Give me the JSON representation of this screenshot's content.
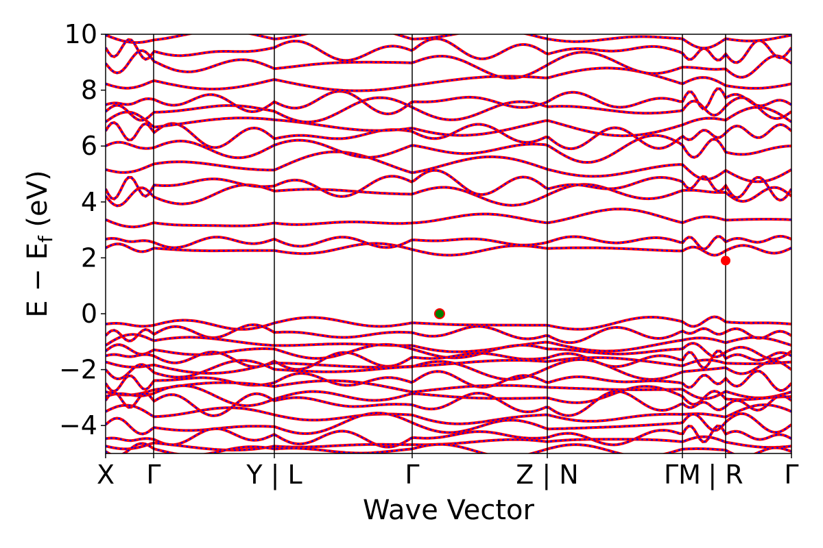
{
  "chart_data": {
    "type": "line",
    "title": "",
    "xlabel": "Wave Vector",
    "ylabel_parts": {
      "main": "E − E",
      "sub": "f",
      "unit": " (eV)"
    },
    "ylim": [
      -5,
      10
    ],
    "y_ticks": [
      {
        "value": 10,
        "label": "10"
      },
      {
        "value": 8,
        "label": "8"
      },
      {
        "value": 6,
        "label": "6"
      },
      {
        "value": 4,
        "label": "4"
      },
      {
        "value": 2,
        "label": "2"
      },
      {
        "value": 0,
        "label": "0"
      },
      {
        "value": -2,
        "label": "−2"
      },
      {
        "value": -4,
        "label": "−4"
      }
    ],
    "kpath": [
      {
        "label": "X",
        "x": 0.0
      },
      {
        "label": "Γ",
        "x": 0.07
      },
      {
        "label": "Y | L",
        "x": 0.246
      },
      {
        "label": "Γ",
        "x": 0.447
      },
      {
        "label": "Z | N",
        "x": 0.644
      },
      {
        "label": "ΓM",
        "x": 0.841
      },
      {
        "label": "| R",
        "x": 0.904
      },
      {
        "label": "Γ",
        "x": 1.0
      }
    ],
    "grid": false,
    "series": [
      {
        "color": "#ff0000",
        "style": "solid"
      },
      {
        "color": "#0000ff",
        "style": "dotted"
      }
    ],
    "vbm": {
      "x": 0.487,
      "y": 0.0,
      "color": "#008000"
    },
    "cbm": {
      "x": 0.904,
      "y": 1.9,
      "color": "#ff0000"
    },
    "conduction_bands_sample": [
      {
        "start": 2.3,
        "amp": 0.18
      },
      {
        "start": 2.6,
        "amp": 0.22
      },
      {
        "start": 3.35,
        "amp": 0.3
      },
      {
        "start": 4.3,
        "amp": 0.35
      },
      {
        "start": 4.6,
        "amp": 0.4
      },
      {
        "start": 5.2,
        "amp": 0.45
      },
      {
        "start": 5.9,
        "amp": 0.45
      },
      {
        "start": 6.4,
        "amp": 0.4
      },
      {
        "start": 6.8,
        "amp": 0.45
      },
      {
        "start": 7.3,
        "amp": 0.35
      },
      {
        "start": 7.6,
        "amp": 0.35
      },
      {
        "start": 8.3,
        "amp": 0.4
      },
      {
        "start": 8.9,
        "amp": 0.4
      },
      {
        "start": 9.4,
        "amp": 0.35
      },
      {
        "start": 9.9,
        "amp": 0.3
      }
    ],
    "valence_bands_sample": [
      {
        "start": -0.35,
        "amp": 0.2
      },
      {
        "start": -0.7,
        "amp": 0.25
      },
      {
        "start": -1.05,
        "amp": 0.3
      },
      {
        "start": -1.35,
        "amp": 0.25
      },
      {
        "start": -1.6,
        "amp": 0.3
      },
      {
        "start": -1.8,
        "amp": 0.25
      },
      {
        "start": -2.0,
        "amp": 0.3
      },
      {
        "start": -2.4,
        "amp": 0.3
      },
      {
        "start": -2.7,
        "amp": 0.3
      },
      {
        "start": -2.95,
        "amp": 0.3
      },
      {
        "start": -3.2,
        "amp": 0.35
      },
      {
        "start": -3.6,
        "amp": 0.3
      },
      {
        "start": -4.0,
        "amp": 0.35
      },
      {
        "start": -4.4,
        "amp": 0.3
      },
      {
        "start": -4.65,
        "amp": 0.25
      },
      {
        "start": -4.9,
        "amp": 0.2
      }
    ]
  }
}
